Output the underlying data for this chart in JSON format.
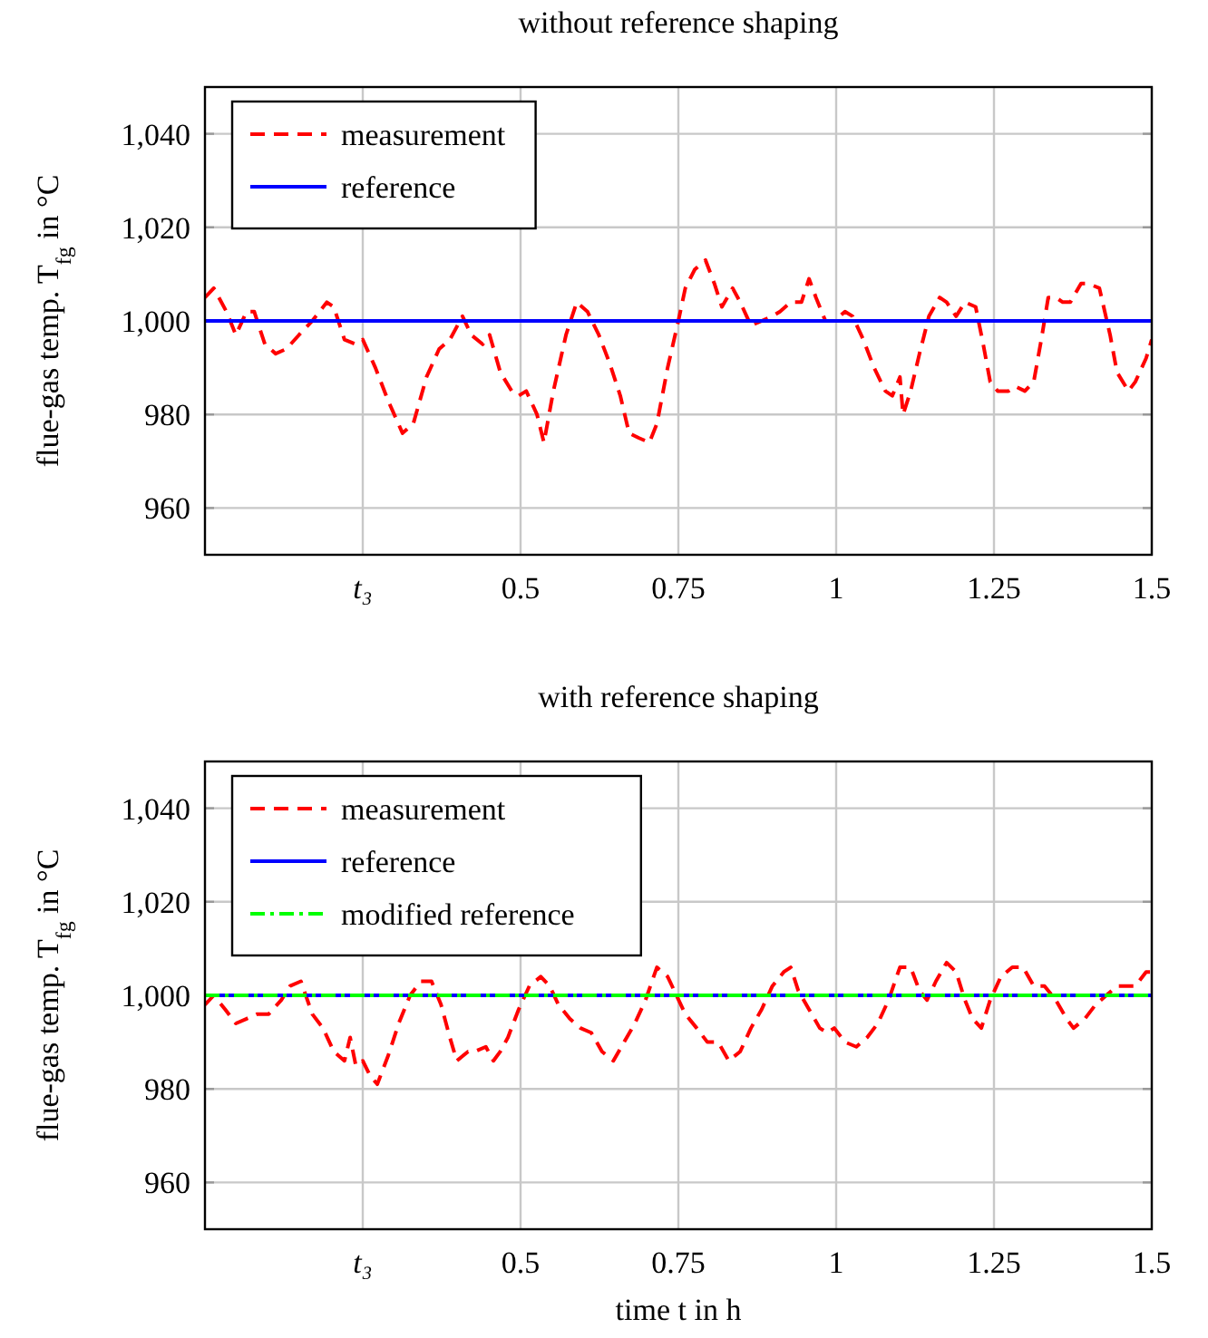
{
  "chart_data": [
    {
      "type": "line",
      "title": "without reference shaping",
      "ylabel": "flue-gas temp. T$_{fg}$ in °C",
      "xlim": [
        0,
        1.5
      ],
      "ylim": [
        950,
        1050
      ],
      "xticks": [
        {
          "value": 0.25,
          "label": "t₃"
        },
        0.5,
        0.75,
        1,
        1.25,
        1.5
      ],
      "yticks": [
        {
          "value": 960,
          "label": "960"
        },
        {
          "value": 980,
          "label": "980"
        },
        {
          "value": 1000,
          "label": "1,000"
        },
        {
          "value": 1020,
          "label": "1,020"
        },
        {
          "value": 1040,
          "label": "1,040"
        }
      ],
      "grid": true,
      "legend": "top left",
      "series": [
        {
          "name": "measurement",
          "color": "#ff0000",
          "line_style": "dashed",
          "x": [
            0,
            0.014,
            0.034,
            0.049,
            0.066,
            0.078,
            0.095,
            0.112,
            0.129,
            0.149,
            0.17,
            0.193,
            0.204,
            0.221,
            0.239,
            0.25,
            0.27,
            0.29,
            0.313,
            0.33,
            0.351,
            0.371,
            0.388,
            0.408,
            0.422,
            0.44,
            0.451,
            0.468,
            0.486,
            0.497,
            0.509,
            0.526,
            0.537,
            0.552,
            0.572,
            0.589,
            0.606,
            0.624,
            0.641,
            0.658,
            0.672,
            0.687,
            0.704,
            0.716,
            0.733,
            0.75,
            0.761,
            0.776,
            0.793,
            0.807,
            0.819,
            0.836,
            0.848,
            0.865,
            0.882,
            0.899,
            0.911,
            0.928,
            0.945,
            0.957,
            0.968,
            0.983,
            0.997,
            1.014,
            1.026,
            1.043,
            1.06,
            1.078,
            1.089,
            1.101,
            1.106,
            1.118,
            1.132,
            1.147,
            1.164,
            1.175,
            1.19,
            1.204,
            1.221,
            1.233,
            1.244,
            1.256,
            1.273,
            1.284,
            1.299,
            1.313,
            1.325,
            1.336,
            1.348,
            1.359,
            1.371,
            1.388,
            1.399,
            1.417,
            1.434,
            1.445,
            1.463,
            1.474,
            1.491,
            1.5
          ],
          "values": [
            1005,
            1007,
            1002,
            997,
            1002,
            1002,
            995,
            993,
            994,
            997,
            1000,
            1004,
            1003,
            996,
            995,
            996,
            990,
            983,
            976,
            978,
            988,
            994,
            996,
            1001,
            997,
            995,
            997,
            989,
            985,
            984,
            985,
            980,
            974,
            985,
            997,
            1004,
            1002,
            997,
            991,
            984,
            976,
            975,
            974,
            978,
            990,
            1000,
            1007,
            1011,
            1013,
            1008,
            1003,
            1007,
            1004,
            999,
            1000,
            1001,
            1002,
            1004,
            1004,
            1009,
            1005,
            1000,
            1000,
            1002,
            1001,
            996,
            990,
            985,
            984,
            988,
            980,
            985,
            993,
            1001,
            1005,
            1004,
            1001,
            1004,
            1003,
            995,
            987,
            985,
            985,
            986,
            985,
            987,
            996,
            1005,
            1005,
            1004,
            1004,
            1008,
            1008,
            1007,
            997,
            989,
            985,
            987,
            992,
            996
          ]
        },
        {
          "name": "reference",
          "color": "#0000ff",
          "line_style": "solid",
          "x": [
            0,
            1.5
          ],
          "values": [
            1000,
            1000
          ]
        }
      ]
    },
    {
      "type": "line",
      "title": "with reference shaping",
      "ylabel": "flue-gas temp. T$_{fg}$ in °C",
      "xlabel": "time t in h",
      "xlim": [
        0,
        1.5
      ],
      "ylim": [
        950,
        1050
      ],
      "xticks": [
        {
          "value": 0.25,
          "label": "t₃"
        },
        0.5,
        0.75,
        1,
        1.25,
        1.5
      ],
      "yticks": [
        {
          "value": 960,
          "label": "960"
        },
        {
          "value": 980,
          "label": "980"
        },
        {
          "value": 1000,
          "label": "1,000"
        },
        {
          "value": 1020,
          "label": "1,020"
        },
        {
          "value": 1040,
          "label": "1,040"
        }
      ],
      "grid": true,
      "legend": "top left",
      "series": [
        {
          "name": "measurement",
          "color": "#ff0000",
          "line_style": "dashed",
          "x": [
            0,
            0.014,
            0.032,
            0.049,
            0.066,
            0.083,
            0.101,
            0.121,
            0.135,
            0.152,
            0.17,
            0.187,
            0.204,
            0.221,
            0.23,
            0.239,
            0.25,
            0.261,
            0.273,
            0.29,
            0.307,
            0.325,
            0.342,
            0.359,
            0.374,
            0.388,
            0.399,
            0.417,
            0.428,
            0.445,
            0.457,
            0.468,
            0.48,
            0.497,
            0.514,
            0.532,
            0.546,
            0.56,
            0.578,
            0.595,
            0.612,
            0.629,
            0.647,
            0.664,
            0.681,
            0.698,
            0.716,
            0.733,
            0.747,
            0.761,
            0.779,
            0.796,
            0.813,
            0.83,
            0.848,
            0.865,
            0.882,
            0.899,
            0.917,
            0.928,
            0.94,
            0.957,
            0.974,
            0.986,
            0.997,
            1.014,
            1.032,
            1.049,
            1.066,
            1.083,
            1.101,
            1.118,
            1.132,
            1.144,
            1.158,
            1.175,
            1.19,
            1.204,
            1.216,
            1.23,
            1.244,
            1.261,
            1.279,
            1.296,
            1.313,
            1.33,
            1.348,
            1.365,
            1.376,
            1.394,
            1.411,
            1.428,
            1.445,
            1.463,
            1.474,
            1.491,
            1.5
          ],
          "values": [
            998,
            1000,
            997,
            994,
            995,
            996,
            996,
            999,
            1002,
            1003,
            996,
            993,
            988,
            986,
            991,
            985,
            986,
            983,
            981,
            987,
            994,
            1000,
            1003,
            1003,
            998,
            991,
            986,
            988,
            988,
            989,
            986,
            988,
            991,
            997,
            1002,
            1004,
            1002,
            998,
            995,
            993,
            992,
            988,
            986,
            990,
            994,
            999,
            1006,
            1004,
            1000,
            996,
            993,
            990,
            990,
            986,
            988,
            993,
            997,
            1002,
            1005,
            1006,
            1001,
            997,
            993,
            992,
            993,
            990,
            989,
            991,
            994,
            999,
            1006,
            1006,
            1001,
            999,
            1003,
            1007,
            1005,
            999,
            995,
            993,
            999,
            1004,
            1006,
            1006,
            1002,
            1002,
            999,
            995,
            993,
            995,
            998,
            1000,
            1002,
            1002,
            1002,
            1005,
            1005
          ]
        },
        {
          "name": "reference",
          "color": "#0000ff",
          "line_style": "solid",
          "x": [
            0,
            1.5
          ],
          "values": [
            1000,
            1000
          ]
        },
        {
          "name": "modified reference",
          "color": "#00ff00",
          "line_style": "dashdot",
          "x": [
            0,
            1.5
          ],
          "values": [
            1000,
            1000
          ]
        }
      ]
    }
  ]
}
